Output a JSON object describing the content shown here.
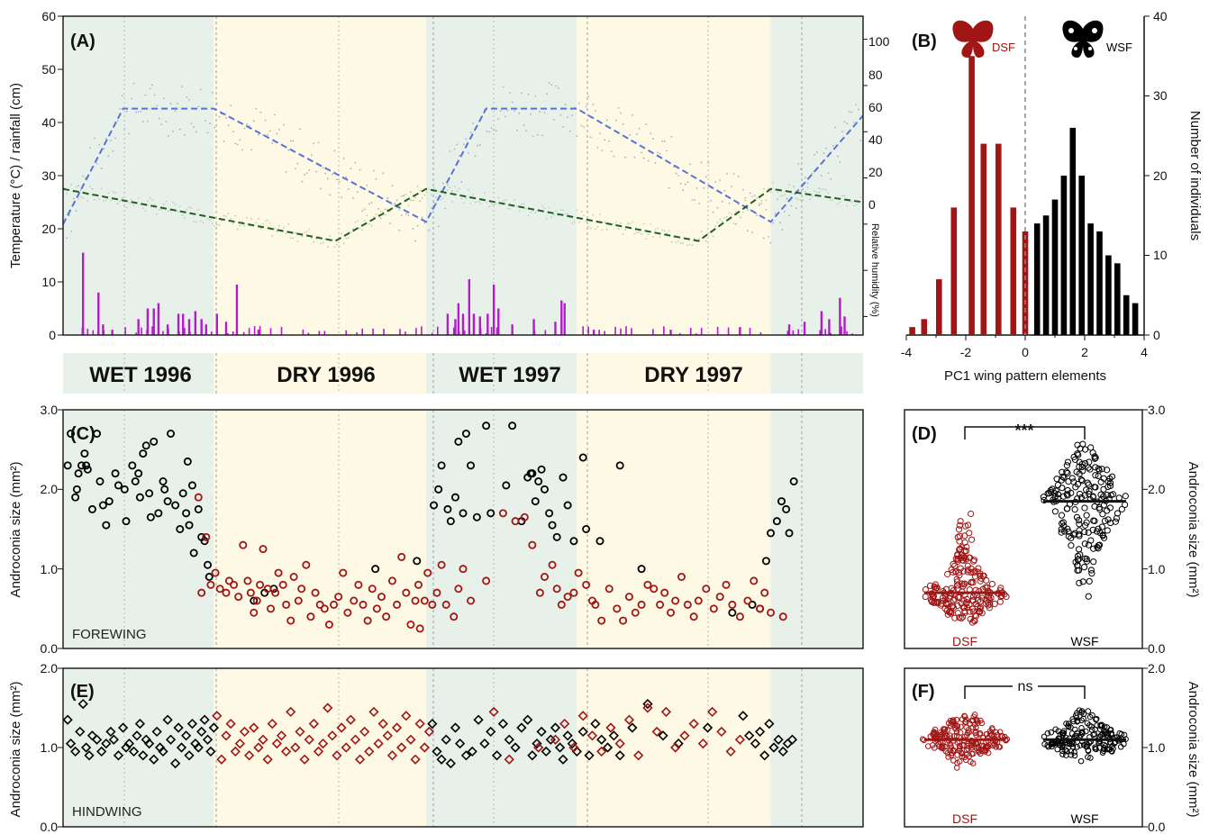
{
  "colors": {
    "wet_bg": "#e8f1e9",
    "dry_bg": "#fdf9e4",
    "dsf": "#a11515",
    "wsf": "#000000",
    "humidity_trend": "#5a72d6",
    "humidity_points": "#a3aec8",
    "temperature_trend": "#1f5f22",
    "temperature_points": "#b9cdb6",
    "rainfall": "#b31cc7"
  },
  "panel_labels": {
    "a": "(A)",
    "b": "(B)",
    "c": "(C)",
    "d": "(D)",
    "e": "(E)",
    "f": "(F)"
  },
  "seasons": [
    "WET 1996",
    "DRY 1996",
    "WET 1997",
    "DRY 1997"
  ],
  "panel_a": {
    "ylabel_left": "Temperature (°C) / rainfall (cm)",
    "ylabel_right": "Relative humidity (%)",
    "left_ticks": [
      "0",
      "10",
      "20",
      "30",
      "40",
      "50",
      "60"
    ],
    "right_ticks": [
      "0",
      "20",
      "40",
      "60",
      "80",
      "100"
    ]
  },
  "panel_b": {
    "xlabel": "PC1 wing pattern elements",
    "ylabel": "Number of individuals",
    "x_ticks": [
      "-4",
      "-2",
      "0",
      "2",
      "4"
    ],
    "y_ticks": [
      "0",
      "10",
      "20",
      "30",
      "40"
    ],
    "dsf_label": "DSF",
    "wsf_label": "WSF"
  },
  "panel_c": {
    "label": "FOREWING",
    "ylabel": "Androconia size (mm²)",
    "ticks": [
      "0.0",
      "1.0",
      "2.0",
      "3.0"
    ]
  },
  "panel_d": {
    "ylabel": "Androconia size (mm²)",
    "ticks": [
      "0.0",
      "1.0",
      "2.0",
      "3.0"
    ],
    "significance": "***",
    "groups": [
      "DSF",
      "WSF"
    ]
  },
  "panel_e": {
    "label": "HINDWING",
    "ylabel": "Androconia size (mm²)",
    "ticks": [
      "0.0",
      "1.0",
      "2.0"
    ]
  },
  "panel_f": {
    "ylabel": "Androconia size (mm²)",
    "ticks": [
      "0.0",
      "1.0",
      "2.0"
    ],
    "significance": "ns",
    "groups": [
      "DSF",
      "WSF"
    ]
  },
  "chart_data": [
    {
      "type": "line",
      "panel": "A",
      "xlim": [
        0,
        1040
      ],
      "ylim": [
        0,
        60
      ],
      "season_bands": [
        {
          "season": "wet",
          "from": 0,
          "to": 196
        },
        {
          "season": "dry",
          "from": 196,
          "to": 472
        },
        {
          "season": "wet",
          "from": 472,
          "to": 668
        },
        {
          "season": "dry",
          "from": 668,
          "to": 920
        },
        {
          "season": "wet",
          "from": 920,
          "to": 1040
        }
      ],
      "series": [
        {
          "key": "humidity",
          "axis": "right",
          "ylim": [
            -28,
            110
          ],
          "x": [
            0,
            78,
            196,
            472,
            550,
            668,
            920,
            1040
          ],
          "values": [
            20,
            70,
            70,
            21,
            70,
            70,
            21,
            67
          ]
        },
        {
          "key": "temperature",
          "axis": "left",
          "x": [
            0,
            354,
            472,
            826,
            920,
            1040
          ],
          "values": [
            27.5,
            17.7,
            27.5,
            17.7,
            27.5,
            25
          ]
        },
        {
          "key": "rainfall",
          "axis": "left",
          "x": [
            26,
            46,
            52,
            64,
            98,
            110,
            118,
            124,
            136,
            150,
            156,
            164,
            172,
            180,
            186,
            200,
            212,
            226,
            254,
            500,
            510,
            514,
            520,
            528,
            534,
            542,
            552,
            560,
            566,
            584,
            612,
            640,
            648,
            652,
            690,
            790,
            880,
            944,
            964,
            986,
            996,
            1010,
            1016
          ],
          "values": [
            15.5,
            8,
            2,
            1,
            3,
            5,
            5,
            6,
            2,
            4,
            4,
            3,
            4.5,
            3,
            2,
            4,
            2.5,
            9.5,
            1,
            4,
            3,
            6,
            4,
            10.5,
            4,
            3.5,
            4,
            9.5,
            5,
            2,
            3,
            2.5,
            6.5,
            6,
            1,
            1,
            1.5,
            2,
            2.5,
            4.5,
            3,
            7,
            3.5
          ]
        }
      ]
    },
    {
      "type": "bar",
      "panel": "B",
      "xlim": [
        -4,
        4
      ],
      "ylim": [
        0,
        40
      ],
      "series": [
        {
          "key": "DSF",
          "x": [
            -3.8,
            -3.4,
            -2.9,
            -2.4,
            -1.8,
            -1.4,
            -0.9,
            -0.4,
            0.0
          ],
          "values": [
            1,
            2,
            7,
            16,
            35,
            24,
            24,
            16,
            13
          ]
        },
        {
          "key": "WSF",
          "x": [
            0.4,
            0.7,
            1.0,
            1.3,
            1.6,
            1.9,
            2.2,
            2.5,
            2.8,
            3.1,
            3.4,
            3.7
          ],
          "values": [
            14,
            15,
            17,
            20,
            26,
            20,
            14,
            13,
            10,
            9,
            5,
            4
          ]
        }
      ]
    },
    {
      "type": "scatter",
      "panel": "C",
      "ylim": [
        0,
        3
      ],
      "series": [
        {
          "key": "WSF",
          "x": [
            6,
            10,
            16,
            18,
            20,
            24,
            28,
            30,
            32,
            38,
            44,
            48,
            52,
            56,
            60,
            68,
            72,
            80,
            82,
            90,
            94,
            98,
            100,
            104,
            108,
            112,
            114,
            118,
            124,
            130,
            132,
            136,
            140,
            146,
            152,
            156,
            160,
            162,
            164,
            168,
            170,
            176,
            180,
            184,
            188,
            190,
            248,
            262,
            274,
            406,
            460,
            482,
            488,
            492,
            500,
            504,
            510,
            514,
            520,
            524,
            530,
            538,
            550,
            556,
            576,
            584,
            596,
            604,
            608,
            610,
            614,
            618,
            622,
            626,
            632,
            636,
            642,
            650,
            656,
            664,
            676,
            680,
            698,
            724,
            752,
            870,
            896,
            906,
            914,
            920,
            928,
            934,
            940,
            944,
            950
          ],
          "values": [
            2.3,
            2.7,
            1.9,
            2.0,
            2.2,
            2.3,
            2.45,
            2.3,
            2.25,
            1.75,
            2.7,
            2.1,
            1.8,
            1.55,
            1.85,
            2.2,
            2.05,
            2.0,
            1.6,
            2.3,
            2.1,
            2.2,
            1.9,
            2.45,
            2.55,
            1.95,
            1.65,
            2.6,
            1.7,
            2.1,
            2.0,
            1.85,
            2.7,
            1.8,
            1.5,
            1.95,
            1.7,
            2.35,
            1.55,
            2.05,
            1.2,
            1.75,
            1.4,
            1.35,
            1.05,
            0.9,
            0.6,
            0.7,
            0.75,
            1.0,
            1.1,
            1.8,
            2.0,
            2.3,
            1.75,
            1.6,
            1.9,
            2.6,
            1.7,
            2.7,
            2.3,
            1.65,
            2.8,
            1.7,
            2.05,
            2.8,
            1.6,
            2.15,
            2.2,
            2.2,
            1.85,
            2.1,
            2.25,
            2.0,
            1.7,
            1.55,
            1.4,
            2.15,
            1.8,
            1.35,
            2.4,
            1.5,
            1.35,
            2.3,
            1.0,
            0.45,
            0.55,
            0.5,
            1.1,
            1.45,
            1.6,
            1.85,
            1.75,
            1.45,
            2.1
          ]
        },
        {
          "key": "DSF",
          "x": [
            176,
            180,
            186,
            192,
            198,
            204,
            212,
            216,
            222,
            228,
            234,
            240,
            244,
            248,
            252,
            256,
            260,
            266,
            270,
            276,
            280,
            286,
            290,
            296,
            300,
            306,
            310,
            316,
            322,
            328,
            334,
            340,
            346,
            352,
            358,
            364,
            370,
            378,
            384,
            390,
            396,
            402,
            408,
            414,
            420,
            428,
            434,
            440,
            446,
            452,
            458,
            462,
            464,
            470,
            474,
            480,
            486,
            492,
            498,
            508,
            514,
            520,
            530,
            550,
            572,
            588,
            600,
            610,
            620,
            626,
            636,
            642,
            648,
            656,
            664,
            670,
            680,
            688,
            692,
            700,
            710,
            720,
            728,
            736,
            744,
            752,
            760,
            768,
            776,
            782,
            790,
            796,
            804,
            812,
            820,
            826,
            836,
            846,
            854,
            862,
            870,
            880,
            890,
            898,
            906,
            912,
            920,
            936
          ],
          "values": [
            1.9,
            0.7,
            1.4,
            0.8,
            0.95,
            0.75,
            0.7,
            0.85,
            0.8,
            0.65,
            1.3,
            0.85,
            0.7,
            0.45,
            0.6,
            0.8,
            1.25,
            0.75,
            0.5,
            0.7,
            0.95,
            0.8,
            0.55,
            0.35,
            0.9,
            0.6,
            0.75,
            1.05,
            0.4,
            0.7,
            0.55,
            0.5,
            0.3,
            0.55,
            0.65,
            0.95,
            0.45,
            0.6,
            0.8,
            0.55,
            0.35,
            0.75,
            0.5,
            0.65,
            0.4,
            0.85,
            0.55,
            1.15,
            0.7,
            0.3,
            0.6,
            0.8,
            0.25,
            0.6,
            0.95,
            0.55,
            0.7,
            1.05,
            0.55,
            0.4,
            0.75,
            1.0,
            0.6,
            0.85,
            1.7,
            1.6,
            1.65,
            1.3,
            0.7,
            0.9,
            1.05,
            0.75,
            0.55,
            0.65,
            0.7,
            0.95,
            0.8,
            0.6,
            0.55,
            0.35,
            0.75,
            0.5,
            0.35,
            0.65,
            0.45,
            0.55,
            0.8,
            0.75,
            0.55,
            0.7,
            0.45,
            0.6,
            0.9,
            0.55,
            0.4,
            0.6,
            0.75,
            0.5,
            0.65,
            0.8,
            0.55,
            0.4,
            0.6,
            0.85,
            0.5,
            0.7,
            0.45,
            0.4
          ]
        }
      ]
    },
    {
      "type": "scatter",
      "panel": "D",
      "ylim": [
        0,
        3
      ],
      "groups": [
        "DSF",
        "WSF"
      ],
      "medians": [
        0.7,
        1.85
      ],
      "ranges": [
        [
          0.25,
          1.95
        ],
        [
          0.4,
          2.85
        ]
      ]
    },
    {
      "type": "scatter",
      "panel": "E",
      "ylim": [
        0,
        2
      ],
      "series": [
        {
          "key": "WSF",
          "x": [
            6,
            10,
            16,
            22,
            26,
            30,
            34,
            38,
            44,
            50,
            56,
            62,
            66,
            72,
            78,
            82,
            86,
            92,
            96,
            100,
            104,
            108,
            112,
            118,
            122,
            126,
            130,
            136,
            140,
            146,
            150,
            154,
            160,
            164,
            168,
            172,
            176,
            180,
            184,
            188,
            192,
            196,
            480,
            486,
            492,
            498,
            504,
            510,
            516,
            524,
            532,
            540,
            548,
            556,
            564,
            572,
            580,
            588,
            596,
            604,
            610,
            616,
            622,
            628,
            634,
            640,
            646,
            650,
            656,
            662,
            668,
            676,
            684,
            692,
            700,
            708,
            716,
            724,
            740,
            760,
            780,
            800,
            838,
            884,
            892,
            900,
            906,
            912,
            918,
            924,
            930,
            936,
            942,
            948
          ],
          "values": [
            1.35,
            1.05,
            0.95,
            1.2,
            1.55,
            1.0,
            0.9,
            1.15,
            1.1,
            0.95,
            1.05,
            1.2,
            1.1,
            0.9,
            1.25,
            1.0,
            1.05,
            0.95,
            1.15,
            1.3,
            0.9,
            1.1,
            1.05,
            0.85,
            1.2,
            1.0,
            0.95,
            1.35,
            1.1,
            0.8,
            1.25,
            1.0,
            1.15,
            0.9,
            1.3,
            1.05,
            1.0,
            1.2,
            1.35,
            1.1,
            0.95,
            1.25,
            1.3,
            0.95,
            0.85,
            1.1,
            0.8,
            1.25,
            1.05,
            0.9,
            0.95,
            1.35,
            1.05,
            1.2,
            0.9,
            1.3,
            1.1,
            1.0,
            1.25,
            1.35,
            0.9,
            1.05,
            1.2,
            0.95,
            1.1,
            1.25,
            1.0,
            0.85,
            1.15,
            1.05,
            0.95,
            1.2,
            0.9,
            1.3,
            1.1,
            1.0,
            1.15,
            0.9,
            1.25,
            1.55,
            1.15,
            1.05,
            1.25,
            1.4,
            1.15,
            1.05,
            1.2,
            0.9,
            1.3,
            1.0,
            1.1,
            0.95,
            1.05,
            1.1
          ]
        },
        {
          "key": "DSF",
          "x": [
            200,
            206,
            212,
            218,
            224,
            230,
            236,
            242,
            248,
            254,
            260,
            266,
            272,
            278,
            284,
            290,
            296,
            302,
            308,
            314,
            320,
            326,
            332,
            338,
            344,
            350,
            356,
            362,
            368,
            374,
            380,
            386,
            392,
            398,
            404,
            410,
            416,
            422,
            428,
            434,
            440,
            446,
            452,
            458,
            464,
            470,
            476,
            560,
            580,
            618,
            640,
            652,
            664,
            676,
            688,
            700,
            712,
            724,
            736,
            748,
            760,
            772,
            784,
            796,
            808,
            820,
            832,
            844,
            856,
            868,
            880
          ],
          "values": [
            1.4,
            0.85,
            1.15,
            1.3,
            0.95,
            1.05,
            1.2,
            0.9,
            1.25,
            1.0,
            1.1,
            0.85,
            1.3,
            1.05,
            1.15,
            0.95,
            1.45,
            1.0,
            1.2,
            0.85,
            1.1,
            1.3,
            0.95,
            1.05,
            1.5,
            1.15,
            0.9,
            1.25,
            1.0,
            1.35,
            1.1,
            0.85,
            1.2,
            0.95,
            1.45,
            1.05,
            1.3,
            1.15,
            0.9,
            1.25,
            1.0,
            1.4,
            1.1,
            0.85,
            1.3,
            1.0,
            1.2,
            1.45,
            0.85,
            1.0,
            1.1,
            1.3,
            1.0,
            1.4,
            1.15,
            0.95,
            1.25,
            1.05,
            1.35,
            0.9,
            1.5,
            1.2,
            1.45,
            1.0,
            1.15,
            1.3,
            1.05,
            1.45,
            1.2,
            0.95,
            1.1
          ]
        }
      ]
    },
    {
      "type": "scatter",
      "panel": "F",
      "ylim": [
        0,
        2
      ],
      "groups": [
        "DSF",
        "WSF"
      ],
      "medians": [
        1.1,
        1.1
      ],
      "ranges": [
        [
          0.7,
          1.55
        ],
        [
          0.8,
          1.6
        ]
      ]
    }
  ]
}
